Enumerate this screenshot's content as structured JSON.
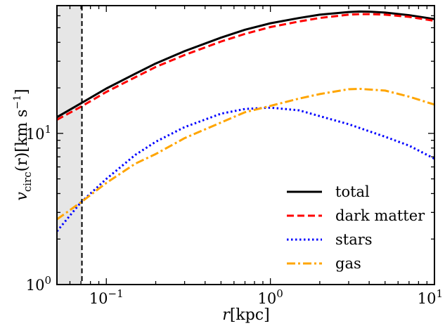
{
  "chart_data": {
    "type": "line",
    "xscale": "log",
    "yscale": "log",
    "xlim": [
      0.05,
      10
    ],
    "ylim": [
      1,
      70
    ],
    "grid": false,
    "legend_position": "lower-right",
    "xlabel": {
      "var": "r",
      "unit": "[kpc]"
    },
    "ylabel": {
      "var": "v",
      "sub": "circ",
      "arg": "(r)",
      "unit": "[km s",
      "sup": "−1",
      "close": "]"
    },
    "x_ticks": [
      {
        "value": 0.1,
        "base": "10",
        "exp": "−1"
      },
      {
        "value": 1,
        "base": "10",
        "exp": "0"
      },
      {
        "value": 10,
        "base": "10",
        "exp": "1"
      }
    ],
    "y_ticks": [
      {
        "value": 1,
        "base": "10",
        "exp": "0"
      },
      {
        "value": 10,
        "base": "10",
        "exp": "1"
      }
    ],
    "shaded_region": {
      "x": [
        0.05,
        0.071
      ],
      "color": "#e6e6e6"
    },
    "vline": {
      "x": 0.071,
      "color": "#000000"
    },
    "series": [
      {
        "name": "total",
        "color": "#000000",
        "style": "solid",
        "x": [
          0.05,
          0.07,
          0.1,
          0.15,
          0.2,
          0.3,
          0.5,
          0.7,
          1,
          1.5,
          2,
          3,
          3.5,
          4,
          5,
          7,
          10
        ],
        "y": [
          12.8,
          15.8,
          19.8,
          24.8,
          29.0,
          35.0,
          43.0,
          48.5,
          53.5,
          58.0,
          61.0,
          63.5,
          64.0,
          63.8,
          63.0,
          60.5,
          57.0
        ]
      },
      {
        "name": "dark matter",
        "color": "#ff0000",
        "style": "dashed",
        "x": [
          0.05,
          0.07,
          0.1,
          0.15,
          0.2,
          0.3,
          0.5,
          0.7,
          1,
          1.5,
          2,
          3,
          3.5,
          4,
          5,
          7,
          10
        ],
        "y": [
          12.3,
          15.0,
          18.8,
          23.5,
          27.5,
          33.0,
          40.5,
          45.5,
          50.5,
          55.0,
          58.0,
          61.0,
          61.5,
          61.5,
          61.0,
          59.0,
          55.5
        ]
      },
      {
        "name": "stars",
        "color": "#0000ff",
        "style": "dotted",
        "x": [
          0.05,
          0.07,
          0.1,
          0.15,
          0.2,
          0.3,
          0.5,
          0.7,
          1,
          1.5,
          2,
          3,
          5,
          7,
          10
        ],
        "y": [
          2.25,
          3.5,
          5.0,
          7.2,
          8.8,
          11.0,
          13.5,
          14.5,
          14.8,
          14.2,
          13.0,
          11.5,
          9.5,
          8.3,
          6.8
        ]
      },
      {
        "name": "gas",
        "color": "#ffa500",
        "style": "dashdot",
        "x": [
          0.05,
          0.07,
          0.1,
          0.15,
          0.2,
          0.3,
          0.5,
          0.7,
          1,
          1.5,
          2,
          3,
          3.5,
          5,
          7,
          10
        ],
        "y": [
          2.7,
          3.5,
          4.7,
          6.3,
          7.3,
          9.3,
          11.8,
          13.8,
          15.2,
          17.0,
          18.2,
          19.6,
          19.7,
          19.2,
          17.5,
          15.5
        ]
      }
    ]
  }
}
